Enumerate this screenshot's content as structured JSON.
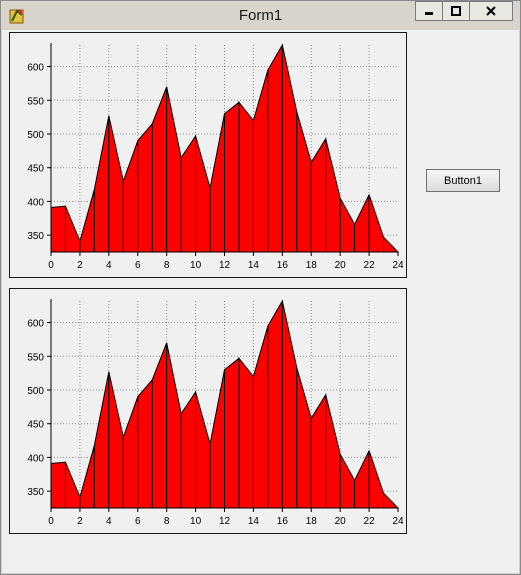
{
  "window": {
    "title": "Form1"
  },
  "button": {
    "label": "Button1"
  },
  "colors": {
    "fill": "#ff0000",
    "stroke": "#000000",
    "plot_bg": "#f0f0f0",
    "grid": "#8c8c8c"
  },
  "chart_data": [
    {
      "type": "area",
      "x": [
        0,
        1,
        2,
        3,
        4,
        5,
        6,
        7,
        8,
        9,
        10,
        11,
        12,
        13,
        14,
        15,
        16,
        17,
        18,
        19,
        20,
        21,
        22,
        23,
        24
      ],
      "series": [
        {
          "values": [
            391,
            393,
            341,
            418,
            527,
            430,
            490,
            515,
            570,
            465,
            497,
            420,
            530,
            547,
            520,
            595,
            632,
            533,
            458,
            493,
            405,
            366,
            410,
            347,
            325
          ]
        }
      ],
      "xlim": [
        0,
        24
      ],
      "ylim": [
        325,
        632
      ],
      "x_ticks": [
        "0",
        "2",
        "4",
        "6",
        "8",
        "10",
        "12",
        "14",
        "16",
        "18",
        "20",
        "22",
        "24"
      ],
      "y_ticks": [
        "350",
        "400",
        "450",
        "500",
        "550",
        "600"
      ],
      "grid": true
    },
    {
      "type": "area",
      "x": [
        0,
        1,
        2,
        3,
        4,
        5,
        6,
        7,
        8,
        9,
        10,
        11,
        12,
        13,
        14,
        15,
        16,
        17,
        18,
        19,
        20,
        21,
        22,
        23,
        24
      ],
      "series": [
        {
          "values": [
            391,
            393,
            341,
            418,
            527,
            430,
            490,
            515,
            570,
            465,
            497,
            420,
            530,
            547,
            520,
            595,
            632,
            533,
            458,
            493,
            405,
            366,
            410,
            347,
            325
          ]
        }
      ],
      "xlim": [
        0,
        24
      ],
      "ylim": [
        325,
        632
      ],
      "x_ticks": [
        "0",
        "2",
        "4",
        "6",
        "8",
        "10",
        "12",
        "14",
        "16",
        "18",
        "20",
        "22",
        "24"
      ],
      "y_ticks": [
        "350",
        "400",
        "450",
        "500",
        "550",
        "600"
      ],
      "grid": true
    }
  ]
}
